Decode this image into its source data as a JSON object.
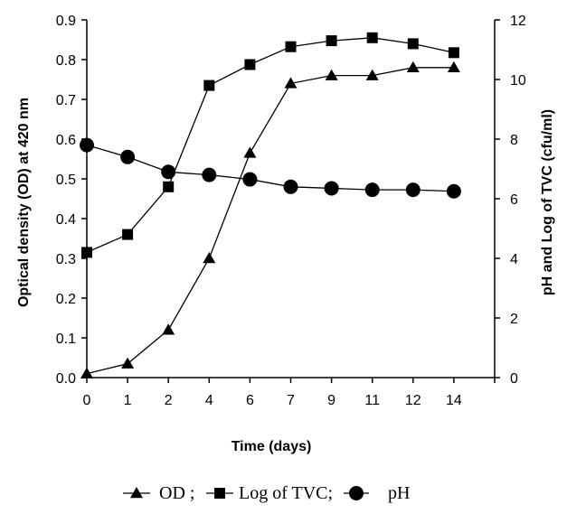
{
  "chart_data": {
    "type": "line",
    "title": "",
    "xlabel": "Time (days)",
    "ylabel_left": "Optical density (OD) at 420 nm",
    "ylabel_right": "pH and Log of TVC (cfu/ml)",
    "x_categories": [
      "0",
      "1",
      "2",
      "4",
      "6",
      "7",
      "9",
      "11",
      "12",
      "14"
    ],
    "y_left_range": [
      0,
      0.9
    ],
    "y_left_ticks": [
      "0.0",
      "0.1",
      "0.2",
      "0.3",
      "0.4",
      "0.5",
      "0.6",
      "0.7",
      "0.8",
      "0.9"
    ],
    "y_right_range": [
      0,
      12
    ],
    "y_right_ticks": [
      "0",
      "2",
      "4",
      "6",
      "8",
      "10",
      "12"
    ],
    "grid": false,
    "legend_position": "bottom",
    "series": [
      {
        "name": "OD",
        "axis": "left",
        "marker": "triangle",
        "values": [
          0.01,
          0.035,
          0.12,
          0.3,
          0.565,
          0.74,
          0.76,
          0.76,
          0.78,
          0.78
        ]
      },
      {
        "name": "Log of TVC",
        "axis": "right",
        "marker": "square",
        "values": [
          4.2,
          4.8,
          6.4,
          9.8,
          10.5,
          11.1,
          11.3,
          11.4,
          11.2,
          10.9
        ]
      },
      {
        "name": "pH",
        "axis": "right",
        "marker": "circle",
        "values": [
          7.8,
          7.4,
          6.9,
          6.8,
          6.65,
          6.4,
          6.35,
          6.3,
          6.3,
          6.25
        ]
      }
    ],
    "legend": [
      {
        "marker": "triangle",
        "label": "OD ;"
      },
      {
        "marker": "square",
        "label": "Log of TVC;"
      },
      {
        "marker": "circle",
        "label": "pH"
      }
    ]
  }
}
